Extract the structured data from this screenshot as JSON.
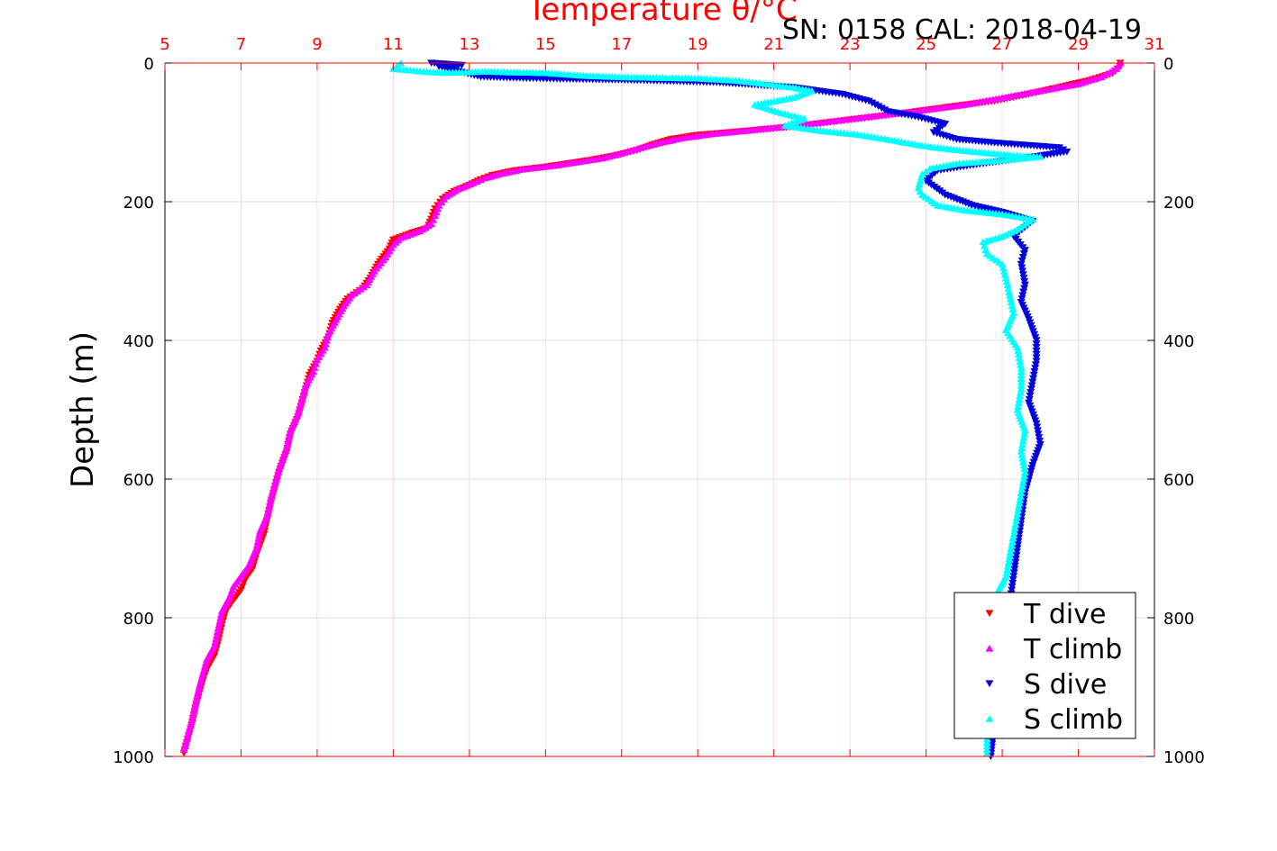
{
  "chart_data": {
    "type": "scatter",
    "title": "Temperature θ/°C",
    "annotation": "SN: 0158  CAL: 2018-04-19",
    "xlabel": "Temperature θ/°C",
    "ylabel": "Depth (m)",
    "xlim": [
      5,
      31
    ],
    "ylim": [
      1000,
      0
    ],
    "x_ticks": [
      "5",
      "7",
      "9",
      "11",
      "13",
      "15",
      "17",
      "19",
      "21",
      "23",
      "25",
      "27",
      "29",
      "31"
    ],
    "y_ticks": [
      "0",
      "200",
      "400",
      "600",
      "800",
      "1000"
    ],
    "grid": true,
    "legend_position": "bottom-right",
    "colors": {
      "t_dive": "#ff0000",
      "t_climb": "#ff00ff",
      "s_dive": "#0000dd",
      "s_climb": "#00ffff",
      "axis_top": "#ff0000",
      "grid": "#d9d9d9"
    },
    "series": [
      {
        "name": "T dive",
        "marker": "triangle-down",
        "color": "#ff0000",
        "points": [
          [
            30.1,
            0
          ],
          [
            30.1,
            5
          ],
          [
            29.9,
            15
          ],
          [
            29.3,
            25
          ],
          [
            28.5,
            35
          ],
          [
            27.7,
            45
          ],
          [
            26.8,
            55
          ],
          [
            25.8,
            62
          ],
          [
            25.0,
            68
          ],
          [
            24.2,
            74
          ],
          [
            23.3,
            80
          ],
          [
            22.4,
            86
          ],
          [
            21.5,
            92
          ],
          [
            20.3,
            98
          ],
          [
            19.0,
            104
          ],
          [
            18.3,
            110
          ],
          [
            17.8,
            118
          ],
          [
            17.4,
            126
          ],
          [
            16.8,
            134
          ],
          [
            16.2,
            140
          ],
          [
            15.6,
            145
          ],
          [
            15.0,
            150
          ],
          [
            14.2,
            155
          ],
          [
            13.6,
            162
          ],
          [
            13.3,
            168
          ],
          [
            13.0,
            176
          ],
          [
            12.6,
            185
          ],
          [
            12.3,
            196
          ],
          [
            12.1,
            210
          ],
          [
            12.0,
            225
          ],
          [
            11.9,
            238
          ],
          [
            11.5,
            245
          ],
          [
            11.0,
            255
          ],
          [
            10.9,
            268
          ],
          [
            10.6,
            290
          ],
          [
            10.4,
            310
          ],
          [
            10.2,
            325
          ],
          [
            9.8,
            340
          ],
          [
            9.6,
            355
          ],
          [
            9.4,
            375
          ],
          [
            9.3,
            395
          ],
          [
            9.1,
            415
          ],
          [
            9.0,
            430
          ],
          [
            8.8,
            450
          ],
          [
            8.7,
            470
          ],
          [
            8.6,
            490
          ],
          [
            8.5,
            510
          ],
          [
            8.3,
            535
          ],
          [
            8.2,
            560
          ],
          [
            8.0,
            590
          ],
          [
            7.9,
            610
          ],
          [
            7.8,
            630
          ],
          [
            7.7,
            655
          ],
          [
            7.6,
            680
          ],
          [
            7.4,
            710
          ],
          [
            7.3,
            730
          ],
          [
            7.1,
            745
          ],
          [
            7.0,
            760
          ],
          [
            6.8,
            775
          ],
          [
            6.6,
            790
          ],
          [
            6.5,
            810
          ],
          [
            6.4,
            835
          ],
          [
            6.3,
            855
          ],
          [
            6.1,
            875
          ],
          [
            6.0,
            890
          ],
          [
            5.9,
            910
          ],
          [
            5.8,
            930
          ],
          [
            5.7,
            955
          ],
          [
            5.6,
            975
          ],
          [
            5.5,
            995
          ]
        ]
      },
      {
        "name": "T climb",
        "marker": "triangle-up",
        "color": "#ff00ff",
        "points": [
          [
            30.1,
            0
          ],
          [
            30.0,
            8
          ],
          [
            29.6,
            20
          ],
          [
            29.0,
            30
          ],
          [
            28.0,
            40
          ],
          [
            27.0,
            50
          ],
          [
            26.0,
            60
          ],
          [
            25.2,
            66
          ],
          [
            24.3,
            72
          ],
          [
            23.4,
            78
          ],
          [
            22.5,
            84
          ],
          [
            21.6,
            90
          ],
          [
            20.5,
            96
          ],
          [
            19.4,
            102
          ],
          [
            18.6,
            108
          ],
          [
            18.0,
            115
          ],
          [
            17.5,
            122
          ],
          [
            17.0,
            130
          ],
          [
            16.5,
            137
          ],
          [
            15.8,
            143
          ],
          [
            15.2,
            148
          ],
          [
            14.4,
            153
          ],
          [
            13.8,
            160
          ],
          [
            13.4,
            166
          ],
          [
            13.1,
            173
          ],
          [
            12.7,
            182
          ],
          [
            12.4,
            192
          ],
          [
            12.2,
            205
          ],
          [
            12.1,
            220
          ],
          [
            12.0,
            232
          ],
          [
            11.7,
            242
          ],
          [
            11.2,
            252
          ],
          [
            11.0,
            262
          ],
          [
            10.8,
            280
          ],
          [
            10.5,
            300
          ],
          [
            10.3,
            320
          ],
          [
            9.9,
            335
          ],
          [
            9.7,
            350
          ],
          [
            9.5,
            370
          ],
          [
            9.3,
            390
          ],
          [
            9.2,
            410
          ],
          [
            9.0,
            428
          ],
          [
            8.9,
            445
          ],
          [
            8.7,
            465
          ],
          [
            8.6,
            485
          ],
          [
            8.5,
            505
          ],
          [
            8.3,
            530
          ],
          [
            8.2,
            555
          ],
          [
            8.0,
            585
          ],
          [
            7.9,
            605
          ],
          [
            7.8,
            625
          ],
          [
            7.7,
            650
          ],
          [
            7.5,
            675
          ],
          [
            7.4,
            700
          ],
          [
            7.2,
            725
          ],
          [
            7.0,
            740
          ],
          [
            6.8,
            755
          ],
          [
            6.7,
            770
          ],
          [
            6.5,
            790
          ],
          [
            6.4,
            815
          ],
          [
            6.3,
            840
          ],
          [
            6.1,
            860
          ],
          [
            6.0,
            880
          ],
          [
            5.9,
            900
          ],
          [
            5.8,
            925
          ],
          [
            5.7,
            950
          ],
          [
            5.6,
            970
          ],
          [
            5.5,
            990
          ]
        ]
      },
      {
        "name": "S dive",
        "marker": "triangle-down",
        "color": "#0000dd",
        "points": [
          [
            12.0,
            0
          ],
          [
            12.5,
            2
          ],
          [
            12.8,
            3
          ],
          [
            12.2,
            5
          ],
          [
            13.3,
            20
          ],
          [
            14.5,
            22
          ],
          [
            15.3,
            23
          ],
          [
            16.5,
            24
          ],
          [
            17.5,
            25
          ],
          [
            18.8,
            27
          ],
          [
            19.5,
            28
          ],
          [
            21.5,
            35
          ],
          [
            22.8,
            45
          ],
          [
            23.5,
            55
          ],
          [
            24.0,
            70
          ],
          [
            24.8,
            78
          ],
          [
            25.5,
            88
          ],
          [
            25.2,
            100
          ],
          [
            25.8,
            110
          ],
          [
            26.8,
            115
          ],
          [
            27.5,
            118
          ],
          [
            28.5,
            122
          ],
          [
            28.7,
            128
          ],
          [
            27.5,
            138
          ],
          [
            26.5,
            145
          ],
          [
            25.3,
            155
          ],
          [
            25.0,
            170
          ],
          [
            25.5,
            190
          ],
          [
            26.2,
            205
          ],
          [
            27.0,
            215
          ],
          [
            27.8,
            228
          ],
          [
            27.3,
            250
          ],
          [
            27.6,
            270
          ],
          [
            27.5,
            290
          ],
          [
            27.6,
            320
          ],
          [
            27.5,
            345
          ],
          [
            27.7,
            370
          ],
          [
            27.9,
            400
          ],
          [
            27.9,
            430
          ],
          [
            27.8,
            460
          ],
          [
            27.7,
            490
          ],
          [
            27.9,
            520
          ],
          [
            28.0,
            550
          ],
          [
            27.8,
            580
          ],
          [
            27.6,
            620
          ],
          [
            27.5,
            660
          ],
          [
            27.4,
            700
          ],
          [
            27.3,
            740
          ],
          [
            27.2,
            780
          ],
          [
            27.1,
            820
          ],
          [
            27.0,
            860
          ],
          [
            26.9,
            900
          ],
          [
            26.8,
            950
          ],
          [
            26.7,
            1000
          ]
        ]
      },
      {
        "name": "S climb",
        "marker": "triangle-up",
        "color": "#00ffff",
        "points": [
          [
            11.2,
            0
          ],
          [
            11.0,
            8
          ],
          [
            11.8,
            12
          ],
          [
            12.3,
            14
          ],
          [
            13.5,
            12
          ],
          [
            14.0,
            13
          ],
          [
            15.0,
            14
          ],
          [
            16.0,
            18
          ],
          [
            17.0,
            20
          ],
          [
            18.0,
            21
          ],
          [
            19.0,
            22
          ],
          [
            20.0,
            25
          ],
          [
            20.8,
            30
          ],
          [
            21.5,
            35
          ],
          [
            22.0,
            40
          ],
          [
            21.5,
            50
          ],
          [
            20.5,
            60
          ],
          [
            21.2,
            72
          ],
          [
            21.8,
            80
          ],
          [
            21.3,
            90
          ],
          [
            22.3,
            98
          ],
          [
            23.2,
            103
          ],
          [
            24.0,
            110
          ],
          [
            24.8,
            118
          ],
          [
            25.3,
            122
          ],
          [
            26.3,
            128
          ],
          [
            27.3,
            133
          ],
          [
            28.0,
            135
          ],
          [
            27.0,
            140
          ],
          [
            25.8,
            145
          ],
          [
            25.1,
            152
          ],
          [
            24.9,
            160
          ],
          [
            24.8,
            180
          ],
          [
            24.9,
            190
          ],
          [
            25.3,
            205
          ],
          [
            26.0,
            212
          ],
          [
            27.0,
            218
          ],
          [
            27.8,
            225
          ],
          [
            27.4,
            240
          ],
          [
            27.0,
            250
          ],
          [
            26.5,
            258
          ],
          [
            26.6,
            275
          ],
          [
            27.0,
            290
          ],
          [
            27.1,
            310
          ],
          [
            27.2,
            335
          ],
          [
            27.3,
            360
          ],
          [
            27.1,
            385
          ],
          [
            27.4,
            410
          ],
          [
            27.5,
            440
          ],
          [
            27.5,
            470
          ],
          [
            27.4,
            500
          ],
          [
            27.6,
            530
          ],
          [
            27.5,
            560
          ],
          [
            27.6,
            590
          ],
          [
            27.5,
            620
          ],
          [
            27.4,
            650
          ],
          [
            27.3,
            680
          ],
          [
            27.2,
            710
          ],
          [
            27.1,
            740
          ],
          [
            26.9,
            760
          ],
          [
            26.8,
            800
          ],
          [
            26.8,
            840
          ],
          [
            26.7,
            880
          ],
          [
            26.7,
            920
          ],
          [
            26.6,
            960
          ],
          [
            26.6,
            995
          ]
        ]
      }
    ],
    "legend": [
      {
        "label": "T dive",
        "color": "#ff0000",
        "marker": "triangle-down"
      },
      {
        "label": "T climb",
        "color": "#ff00ff",
        "marker": "triangle-up"
      },
      {
        "label": "S dive",
        "color": "#0000dd",
        "marker": "triangle-down"
      },
      {
        "label": "S climb",
        "color": "#00ffff",
        "marker": "triangle-up"
      }
    ]
  }
}
